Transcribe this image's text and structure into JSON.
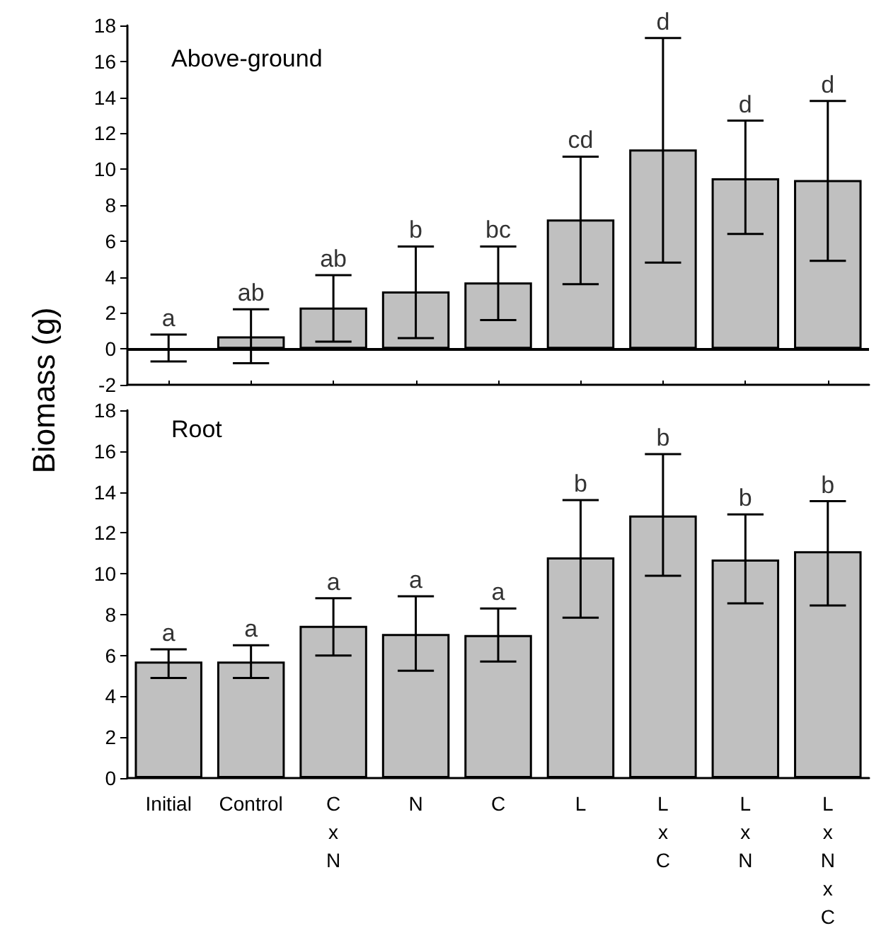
{
  "chart_data": [
    {
      "type": "bar",
      "title": "Above-ground",
      "ylabel": "Biomass (g)",
      "categories": [
        "Initial",
        "Control",
        "C\nx\nN",
        "N",
        "C",
        "L",
        "L\nx\nC",
        "L\nx\nN",
        "L\nx\nN\nx\nC"
      ],
      "values": [
        0,
        0.7,
        2.3,
        3.2,
        3.7,
        7.2,
        11.1,
        9.5,
        9.4
      ],
      "color": "#c0c0c0",
      "errors": [
        [
          -0.7,
          0.8
        ],
        [
          -0.8,
          2.2
        ],
        [
          0.4,
          4.1
        ],
        [
          0.6,
          5.7
        ],
        [
          1.6,
          5.7
        ],
        [
          3.6,
          10.7
        ],
        [
          4.8,
          17.3
        ],
        [
          6.4,
          12.7
        ],
        [
          4.9,
          13.8
        ]
      ],
      "ylim": [
        -2,
        18
      ],
      "yticks": [
        -2,
        0,
        2,
        4,
        6,
        8,
        10,
        12,
        14,
        16,
        18
      ],
      "tick_labels": "y",
      "grid": false,
      "ref_lines": [
        {
          "axis": "y",
          "value": 0,
          "label": null
        }
      ],
      "annotations": [
        {
          "text": "a",
          "x": "Initial",
          "y": 0.8
        },
        {
          "text": "ab",
          "x": "Control",
          "y": 2.2
        },
        {
          "text": "ab",
          "x": "C\nx\nN",
          "y": 4.1
        },
        {
          "text": "b",
          "x": "N",
          "y": 5.7
        },
        {
          "text": "bc",
          "x": "C",
          "y": 5.7
        },
        {
          "text": "cd",
          "x": "L",
          "y": 10.7
        },
        {
          "text": "d",
          "x": "L\nx\nC",
          "y": 17.3
        },
        {
          "text": "d",
          "x": "L\nx\nN",
          "y": 12.7
        },
        {
          "text": "d",
          "x": "L\nx\nN\nx\nC",
          "y": 13.8
        }
      ]
    },
    {
      "type": "bar",
      "title": "Root",
      "categories": [
        "Initial",
        "Control",
        "C\nx\nN",
        "N",
        "C",
        "L",
        "L\nx\nC",
        "L\nx\nN",
        "L\nx\nN\nx\nC"
      ],
      "values": [
        5.7,
        5.7,
        7.45,
        7.05,
        7.0,
        10.8,
        12.85,
        10.7,
        11.1
      ],
      "color": "#c0c0c0",
      "errors": [
        [
          4.9,
          6.3
        ],
        [
          4.9,
          6.5
        ],
        [
          6.0,
          8.8
        ],
        [
          5.25,
          8.9
        ],
        [
          5.7,
          8.3
        ],
        [
          7.85,
          13.6
        ],
        [
          9.9,
          15.85
        ],
        [
          8.55,
          12.9
        ],
        [
          8.45,
          13.55
        ]
      ],
      "ylim": [
        0,
        18
      ],
      "yticks": [
        0,
        2,
        4,
        6,
        8,
        10,
        12,
        14,
        16,
        18
      ],
      "grid": false,
      "annotations": [
        {
          "text": "a",
          "x": "Initial",
          "y": 6.3
        },
        {
          "text": "a",
          "x": "Control",
          "y": 6.5
        },
        {
          "text": "a",
          "x": "C\nx\nN",
          "y": 8.8
        },
        {
          "text": "a",
          "x": "N",
          "y": 8.9
        },
        {
          "text": "a",
          "x": "C",
          "y": 8.3
        },
        {
          "text": "b",
          "x": "L",
          "y": 13.6
        },
        {
          "text": "b",
          "x": "L\nx\nC",
          "y": 15.85
        },
        {
          "text": "b",
          "x": "L\nx\nN",
          "y": 12.9
        },
        {
          "text": "b",
          "x": "L\nx\nN\nx\nC",
          "y": 13.55
        }
      ]
    }
  ]
}
